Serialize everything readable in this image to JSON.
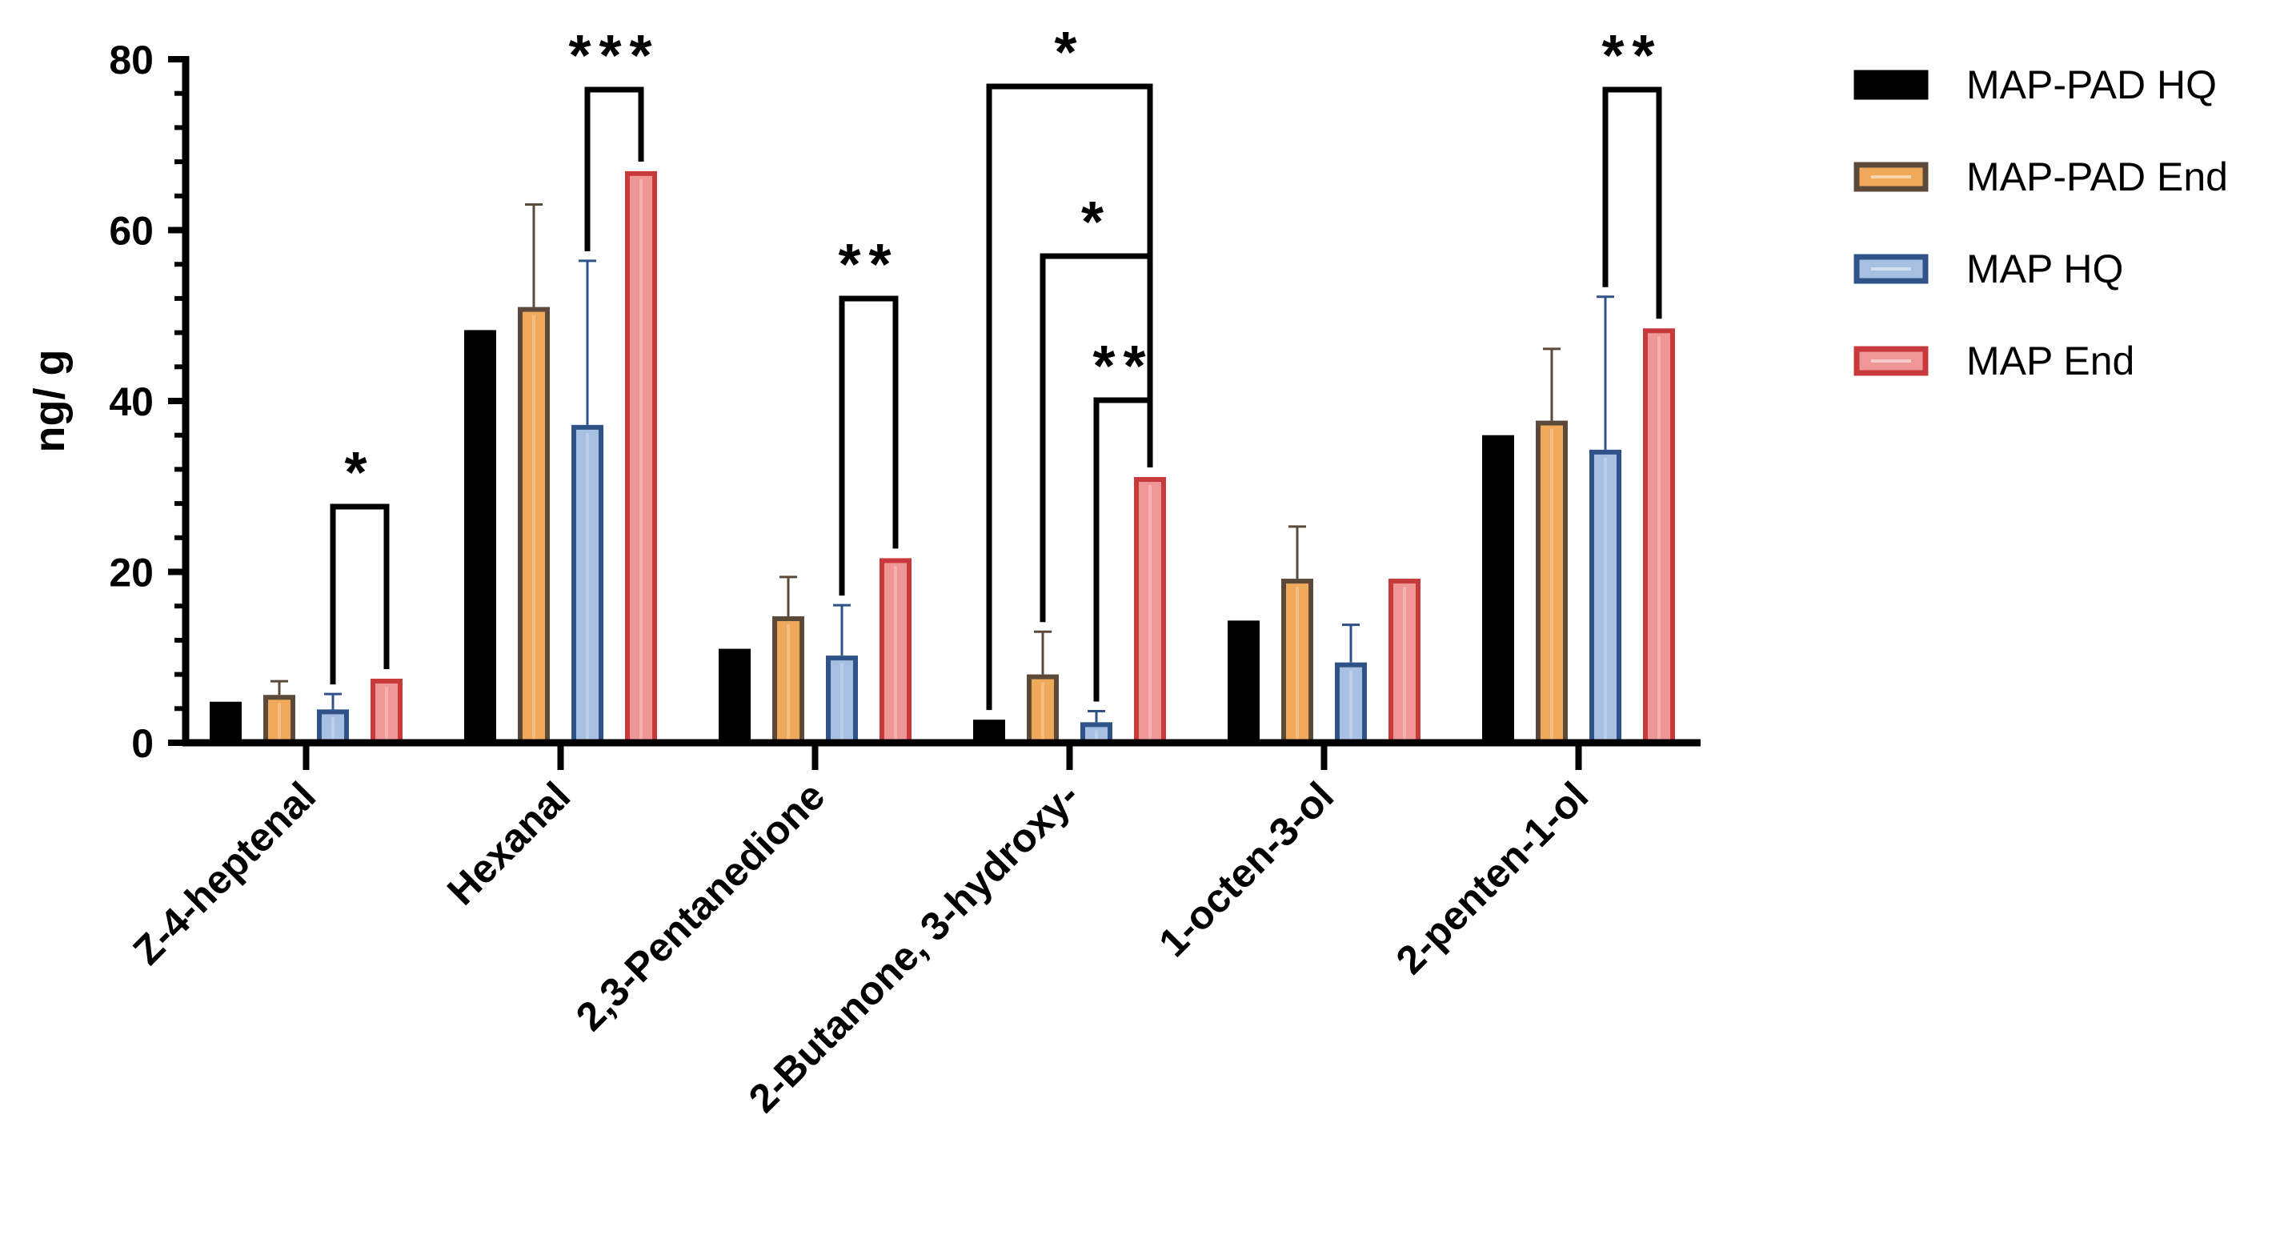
{
  "chart_data": {
    "type": "bar",
    "title": "",
    "xlabel": "",
    "ylabel": "ng/ g",
    "ylim": [
      0,
      80
    ],
    "yticks": [
      "0",
      "20",
      "40",
      "60",
      "80"
    ],
    "categories": [
      "Z-4-heptenal",
      "Hexanal",
      "2,3-Pentanedione",
      "2-Butanone, 3-hydroxy-",
      "1-octen-3-ol",
      "2-penten-1-ol"
    ],
    "series": [
      {
        "name": "MAP-PAD HQ",
        "values": [
          4.8,
          48.3,
          11.0,
          2.7,
          14.3,
          36.0
        ],
        "errors": [
          0,
          0,
          0,
          0,
          0,
          0
        ],
        "fill": "#000000",
        "edge": "#000000"
      },
      {
        "name": "MAP-PAD End",
        "values": [
          5.6,
          51.0,
          14.8,
          8.0,
          19.2,
          37.7
        ],
        "errors": [
          1.6,
          12.0,
          4.6,
          5.0,
          6.1,
          8.4
        ],
        "fill": "#f0a95a",
        "edge": "#5b4a3a"
      },
      {
        "name": "MAP HQ",
        "values": [
          3.9,
          37.2,
          10.2,
          2.4,
          9.4,
          34.3
        ],
        "errors": [
          1.8,
          19.2,
          5.9,
          1.3,
          4.4,
          17.9
        ],
        "fill": "#a7bfe0",
        "edge": "#2f5288"
      },
      {
        "name": "MAP End",
        "values": [
          7.5,
          66.9,
          21.6,
          31.1,
          19.2,
          48.5
        ],
        "errors": [
          0,
          0,
          0,
          0,
          0,
          0
        ],
        "fill": "#ef9696",
        "edge": "#c8393b"
      }
    ],
    "legend_position": "top-right",
    "significance": [
      {
        "category": 0,
        "from_series": 2,
        "to_series": 3,
        "label": "*"
      },
      {
        "category": 1,
        "from_series": 2,
        "to_series": 3,
        "label": "***"
      },
      {
        "category": 2,
        "from_series": 2,
        "to_series": 3,
        "label": "**"
      },
      {
        "category": 3,
        "from_series": 0,
        "to_series": 3,
        "label": "*"
      },
      {
        "category": 3,
        "from_series": 1,
        "to_series": 3,
        "label": "*"
      },
      {
        "category": 3,
        "from_series": 2,
        "to_series": 3,
        "label": "**"
      },
      {
        "category": 5,
        "from_series": 2,
        "to_series": 3,
        "label": "**"
      }
    ]
  }
}
